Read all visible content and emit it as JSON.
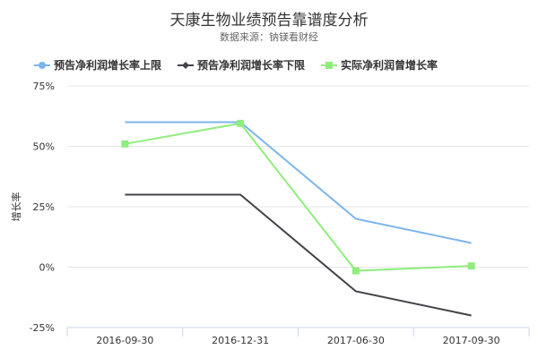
{
  "chart_data": {
    "type": "line",
    "title": "天康生物业绩预告靠谱度分析",
    "subtitle": "数据来源：钠镁看财经",
    "xlabel": "",
    "ylabel": "增长率",
    "categories": [
      "2016-09-30",
      "2016-12-31",
      "2017-06-30",
      "2017-09-30"
    ],
    "yticks": [
      "75%",
      "50%",
      "25%",
      "0%",
      "-25%"
    ],
    "ytick_values": [
      75,
      50,
      25,
      0,
      -25
    ],
    "ylim": [
      -25,
      75
    ],
    "grid": true,
    "legend_position": "top-left",
    "series": [
      {
        "name": "预告净利润增长率上限",
        "values": [
          60,
          60,
          20,
          10
        ],
        "color": "#7cb5ec",
        "marker": "circle"
      },
      {
        "name": "预告净利润增长率下限",
        "values": [
          30,
          30,
          -10,
          -20
        ],
        "color": "#434348",
        "marker": "diamond"
      },
      {
        "name": "实际净利润曾增长率",
        "values": [
          51,
          59.5,
          -1.5,
          0.5
        ],
        "color": "#90ed7d",
        "marker": "square"
      }
    ]
  }
}
